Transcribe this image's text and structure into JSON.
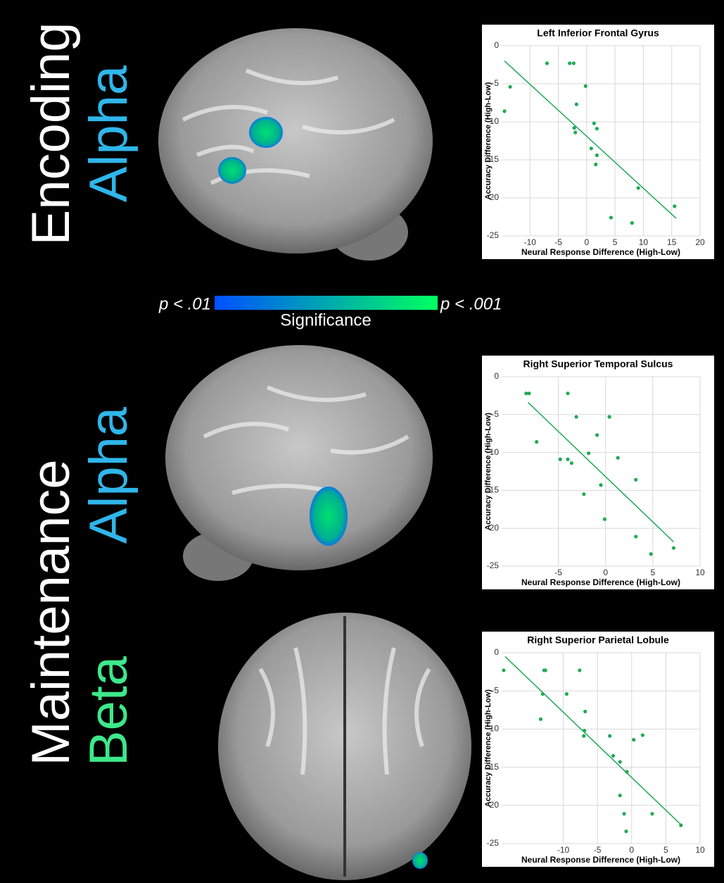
{
  "labels": {
    "encoding": "Encoding",
    "alpha_1": "Alpha",
    "maintenance": "Maintenance",
    "alpha_2": "Alpha",
    "beta": "Beta",
    "p_low": "p < .01",
    "p_high": "p < .001",
    "colorbar": "Significance"
  },
  "chart_data": [
    {
      "type": "scatter",
      "title": "Left Inferior Frontal Gyrus",
      "x_label": "Neural Response Difference (High-Low)",
      "y_label": "Accuracy Difference (High-Low)",
      "color": "#1eaa55",
      "grid": true,
      "xlim": [
        -15,
        20
      ],
      "ylim": [
        -25,
        0
      ],
      "xticks": [
        -10,
        -5,
        0,
        5,
        10,
        15,
        20
      ],
      "yticks": [
        0,
        -5,
        -10,
        -15,
        -20,
        -25
      ],
      "x": [
        -14.5,
        -13.5,
        -7,
        -3,
        -2.3,
        -0.2,
        -1.8,
        -2.2,
        -2,
        1.3,
        1.8,
        0.8,
        1.8,
        1.6,
        9.1,
        15.5,
        4.3,
        8
      ],
      "values": [
        -8.6,
        -5.4,
        -2.3,
        -2.3,
        -2.3,
        -5.3,
        -7.7,
        -10.8,
        -11.4,
        -10.2,
        -10.9,
        -13.5,
        -14.4,
        -15.6,
        -18.7,
        -21.1,
        -22.6,
        -23.3
      ],
      "trend_x": [
        -14.5,
        15.8
      ],
      "trend_y": [
        -2,
        -22.7
      ]
    },
    {
      "type": "scatter",
      "title": "Right Superior Temporal Sulcus",
      "x_label": "Neural Response Difference (High-Low)",
      "y_label": "Accuracy Difference (High-Low)",
      "color": "#1eaa55",
      "grid": true,
      "xlim": [
        -11,
        10
      ],
      "ylim": [
        -25,
        0
      ],
      "xticks": [
        -5,
        0,
        5,
        10
      ],
      "yticks": [
        0,
        -5,
        -10,
        -15,
        -20,
        -25
      ],
      "x": [
        -8.4,
        -8.1,
        -7.3,
        -4,
        -3.1,
        -4.8,
        -4,
        -3.6,
        -0.9,
        -1.8,
        0.4,
        1.3,
        -0.5,
        -2.3,
        -0.1,
        3.2,
        3.2,
        4.8,
        7.2
      ],
      "values": [
        -2.2,
        -2.2,
        -8.6,
        -2.2,
        -5.3,
        -10.9,
        -10.9,
        -11.4,
        -7.7,
        -10.1,
        -5.3,
        -10.7,
        -14.3,
        -15.5,
        -18.8,
        -13.6,
        -21.1,
        -23.4,
        -22.6
      ],
      "trend_x": [
        -8.2,
        7.2
      ],
      "trend_y": [
        -3.4,
        -21.8
      ]
    },
    {
      "type": "scatter",
      "title": "Right Superior Parietal Lobule",
      "x_label": "Neural Response Difference (High-Low)",
      "y_label": "Accuracy Difference (High-Low)",
      "color": "#1eaa55",
      "grid": true,
      "xlim": [
        -19,
        10
      ],
      "ylim": [
        -25,
        0
      ],
      "xticks": [
        -10,
        -5,
        0,
        5,
        10
      ],
      "yticks": [
        0,
        -5,
        -10,
        -15,
        -20,
        -25
      ],
      "x": [
        -18.7,
        -12.8,
        -12.6,
        -13,
        -13.3,
        -9.5,
        -7.6,
        -6.8,
        -6.9,
        -7,
        -3.2,
        -2.7,
        -1.7,
        -0.7,
        -1.7,
        -1.1,
        0.3,
        1.6,
        3,
        7.2,
        -0.8
      ],
      "values": [
        -2.3,
        -2.3,
        -2.3,
        -5.4,
        -8.7,
        -5.4,
        -2.3,
        -7.7,
        -10.2,
        -10.9,
        -10.9,
        -13.5,
        -14.3,
        -15.6,
        -18.7,
        -21.1,
        -11.4,
        -10.8,
        -21.1,
        -22.6,
        -23.4
      ],
      "trend_x": [
        -18.5,
        7.3
      ],
      "trend_y": [
        -0.5,
        -22.6
      ]
    }
  ]
}
